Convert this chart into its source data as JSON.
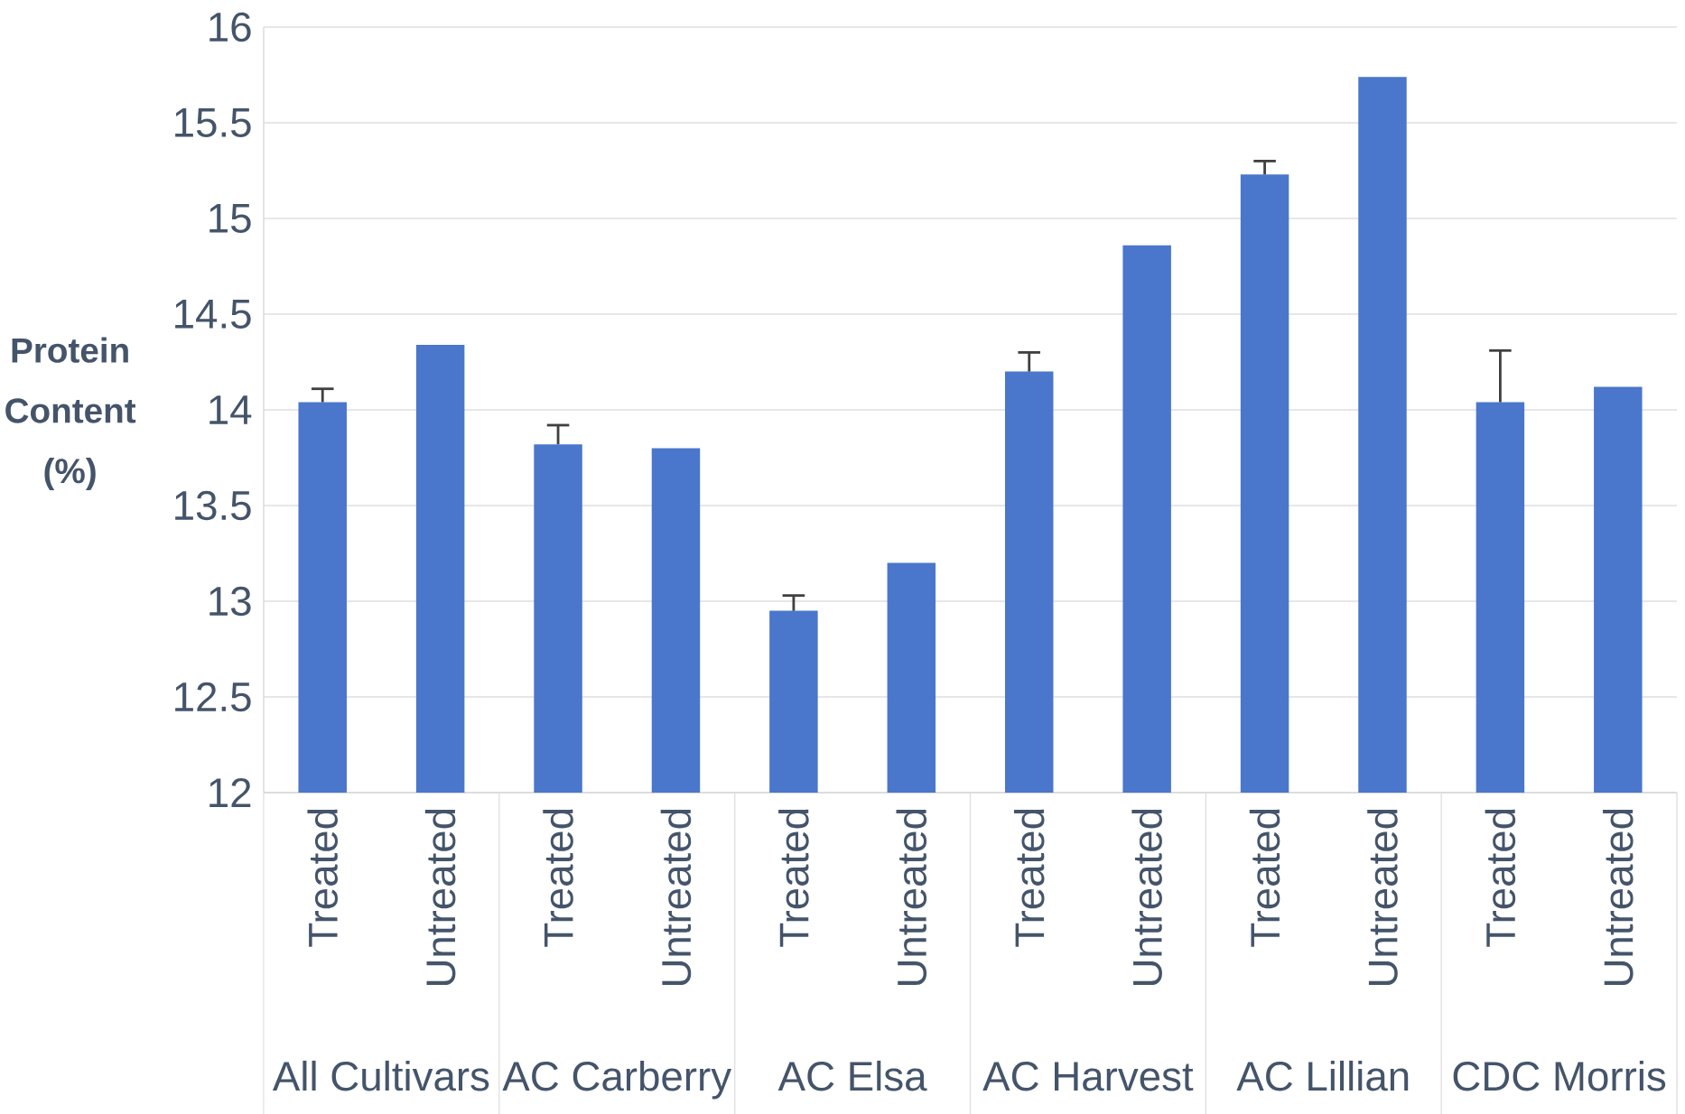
{
  "chart_data": {
    "type": "bar",
    "ylabel": "Protein Content (%)",
    "categories": [
      "Treated",
      "Untreated",
      "Treated",
      "Untreated",
      "Treated",
      "Untreated",
      "Treated",
      "Untreated",
      "Treated",
      "Untreated",
      "Treated",
      "Untreated"
    ],
    "values": [
      14.04,
      14.34,
      13.82,
      13.8,
      12.95,
      13.2,
      14.2,
      14.86,
      15.23,
      15.74,
      14.04,
      14.12
    ],
    "errors": [
      [
        14.04,
        14.11
      ],
      null,
      [
        13.82,
        13.92
      ],
      null,
      [
        12.95,
        13.03
      ],
      null,
      [
        14.2,
        14.3
      ],
      null,
      [
        15.23,
        15.3
      ],
      null,
      [
        14.04,
        14.31
      ],
      null
    ],
    "color": "#4a76cc",
    "annotations": [
      "All Cultivars",
      "AC Carberry",
      "AC Elsa",
      "AC Harvest",
      "AC Lillian",
      "CDC Morris"
    ],
    "ylim": [
      12,
      16
    ],
    "yticks": [
      12,
      12.5,
      13,
      13.5,
      14,
      14.5,
      15,
      15.5,
      16
    ],
    "grid": "y"
  }
}
